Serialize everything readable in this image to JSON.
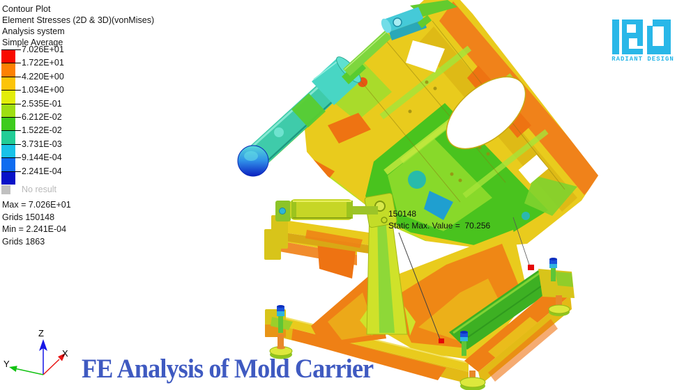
{
  "legend": {
    "title_lines": [
      "Contour Plot",
      "Element Stresses (2D & 3D)(vonMises)",
      "Analysis system",
      "Simple Average"
    ],
    "levels": [
      {
        "label": "7.026E+01",
        "color": "#f90b00"
      },
      {
        "label": "1.722E+01",
        "color": "#fd8104"
      },
      {
        "label": "4.220E+00",
        "color": "#fcc40a"
      },
      {
        "label": "1.034E+00",
        "color": "#e2ed09"
      },
      {
        "label": "2.535E-01",
        "color": "#9ede12"
      },
      {
        "label": "6.212E-02",
        "color": "#3ecb1d"
      },
      {
        "label": "1.522E-02",
        "color": "#22cd96"
      },
      {
        "label": "3.731E-03",
        "color": "#18c2e8"
      },
      {
        "label": "9.144E-04",
        "color": "#0e6cf0"
      },
      {
        "label": "2.241E-04",
        "color": "#0712c8"
      }
    ],
    "no_result": {
      "label": "No result",
      "color": "#c0c0c0"
    },
    "stats": [
      "Max = 7.026E+01",
      "Grids 150148",
      "Min = 2.241E-04",
      "Grids 1863"
    ]
  },
  "annotation": {
    "grid_id": "150148",
    "value_line": "Static Max. Value =  70.256"
  },
  "axes": {
    "x_label": "X",
    "y_label": "Y",
    "z_label": "Z",
    "x_color": "#e81414",
    "y_color": "#12c212",
    "z_color": "#1616e6"
  },
  "logo": {
    "brand": "RADIANT DESIGN",
    "color": "#29b7e8"
  },
  "title": {
    "text": "FE Analysis of Mold Carrier",
    "color": "#3f5ac1"
  }
}
